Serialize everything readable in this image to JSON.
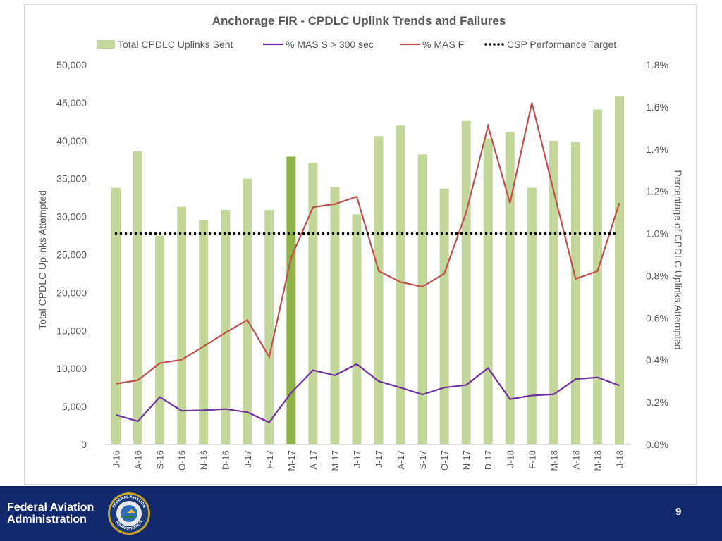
{
  "footer": {
    "agency": "Federal Aviation\nAdministration",
    "seal_text_top": "FEDERAL AVIATION",
    "seal_text_bottom": "ADMINISTRATION",
    "page_number": "9",
    "background_color": "#13296e"
  },
  "chart_data": {
    "type": "bar+line",
    "title": "Anchorage FIR - CPDLC Uplink Trends and Failures",
    "ylabel_left": "Total CPDLC Uplinks Attempted",
    "ylabel_right": "Percentage of CPDLC Uplinks Attempted",
    "ylim_left": [
      0,
      50000
    ],
    "ylim_right": [
      0,
      1.8
    ],
    "yticks_left": [
      "0",
      "5,000",
      "10,000",
      "15,000",
      "20,000",
      "25,000",
      "30,000",
      "35,000",
      "40,000",
      "45,000",
      "50,000"
    ],
    "yticks_right": [
      "0.0%",
      "0.2%",
      "0.4%",
      "0.6%",
      "0.8%",
      "1.0%",
      "1.2%",
      "1.4%",
      "1.6%",
      "1.8%"
    ],
    "grid": false,
    "legend_position": "top",
    "categories": [
      "J-16",
      "A-16",
      "S-16",
      "O-16",
      "N-16",
      "D-16",
      "J-17",
      "F-17",
      "M-17",
      "A-17",
      "M-17",
      "J-17",
      "J-17",
      "A-17",
      "S-17",
      "O-17",
      "N-17",
      "D-17",
      "J-18",
      "F-18",
      "M-18",
      "A-18",
      "M-18",
      "J-18"
    ],
    "highlight_index": 8,
    "series": [
      {
        "name": "Total CPDLC Uplinks Sent",
        "type": "bar",
        "axis": "left",
        "color": "#c4d79b",
        "highlight_color": "#8fb34a",
        "values": [
          33800,
          38600,
          27500,
          31300,
          29600,
          30900,
          35000,
          30900,
          37900,
          37100,
          33900,
          30300,
          40600,
          42000,
          38200,
          33700,
          42600,
          40300,
          41100,
          33800,
          40000,
          39800,
          44100,
          45900
        ]
      },
      {
        "name": "% MAS S > 300 sec",
        "type": "line",
        "axis": "right",
        "color": "#7030a0",
        "values": [
          0.14,
          0.11,
          0.225,
          0.16,
          0.162,
          0.168,
          0.153,
          0.105,
          0.245,
          0.352,
          0.328,
          0.381,
          0.3,
          0.27,
          0.237,
          0.27,
          0.282,
          0.362,
          0.215,
          0.232,
          0.238,
          0.31,
          0.318,
          0.28
        ]
      },
      {
        "name": "% MAS F",
        "type": "line",
        "axis": "right",
        "color": "#c0504d",
        "values": [
          0.288,
          0.305,
          0.385,
          0.402,
          0.465,
          0.53,
          0.59,
          0.415,
          0.885,
          1.125,
          1.14,
          1.175,
          0.823,
          0.77,
          0.748,
          0.81,
          1.1,
          1.51,
          1.145,
          1.62,
          1.2,
          0.785,
          0.822,
          1.145
        ]
      },
      {
        "name": "CSP Performance Target",
        "type": "line",
        "style": "dotted",
        "axis": "right",
        "color": "#000000",
        "values": [
          1.0,
          1.0,
          1.0,
          1.0,
          1.0,
          1.0,
          1.0,
          1.0,
          1.0,
          1.0,
          1.0,
          1.0,
          1.0,
          1.0,
          1.0,
          1.0,
          1.0,
          1.0,
          1.0,
          1.0,
          1.0,
          1.0,
          1.0,
          1.0
        ]
      }
    ]
  }
}
